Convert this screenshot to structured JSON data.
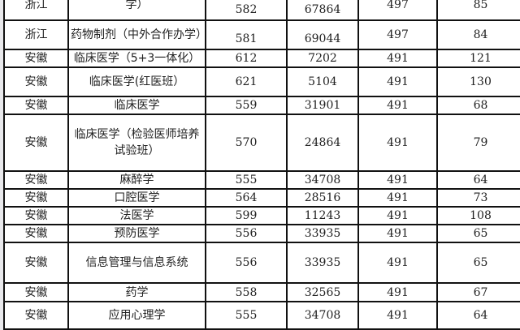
{
  "rows": [
    {
      "province": "浙江",
      "major": "学）",
      "score": "582",
      "rank": "67864",
      "line": "497",
      "diff": "85",
      "tall": true,
      "low": true
    },
    {
      "province": "浙江",
      "major": "药物制剂（中外合作办学）",
      "score": "581",
      "rank": "69044",
      "line": "497",
      "diff": "84",
      "tall": true,
      "low": true
    },
    {
      "province": "安徽",
      "major": "临床医学（5+3一体化）",
      "score": "612",
      "rank": "7202",
      "line": "491",
      "diff": "121"
    },
    {
      "province": "安徽",
      "major": "临床医学(红医班）",
      "score": "621",
      "rank": "5104",
      "line": "491",
      "diff": "130",
      "h": 36
    },
    {
      "province": "安徽",
      "major": "临床医学",
      "score": "559",
      "rank": "31901",
      "line": "491",
      "diff": "68"
    },
    {
      "province": "安徽",
      "major": "临床医学（检验医师培养试验班）",
      "score": "570",
      "rank": "24864",
      "line": "491",
      "diff": "79",
      "h": 70
    },
    {
      "province": "安徽",
      "major": "麻醉学",
      "score": "555",
      "rank": "34708",
      "line": "491",
      "diff": "64"
    },
    {
      "province": "安徽",
      "major": "口腔医学",
      "score": "564",
      "rank": "28516",
      "line": "491",
      "diff": "73"
    },
    {
      "province": "安徽",
      "major": "法医学",
      "score": "599",
      "rank": "11243",
      "line": "491",
      "diff": "108"
    },
    {
      "province": "安徽",
      "major": "预防医学",
      "score": "556",
      "rank": "33935",
      "line": "491",
      "diff": "65"
    },
    {
      "province": "安徽",
      "major": "信息管理与信息系统",
      "score": "556",
      "rank": "33935",
      "line": "491",
      "diff": "65",
      "h": 50
    },
    {
      "province": "安徽",
      "major": "药学",
      "score": "558",
      "rank": "32565",
      "line": "491",
      "diff": "67"
    },
    {
      "province": "安徽",
      "major": "应用心理学",
      "score": "555",
      "rank": "34708",
      "line": "491",
      "diff": "64",
      "h": 34
    }
  ]
}
